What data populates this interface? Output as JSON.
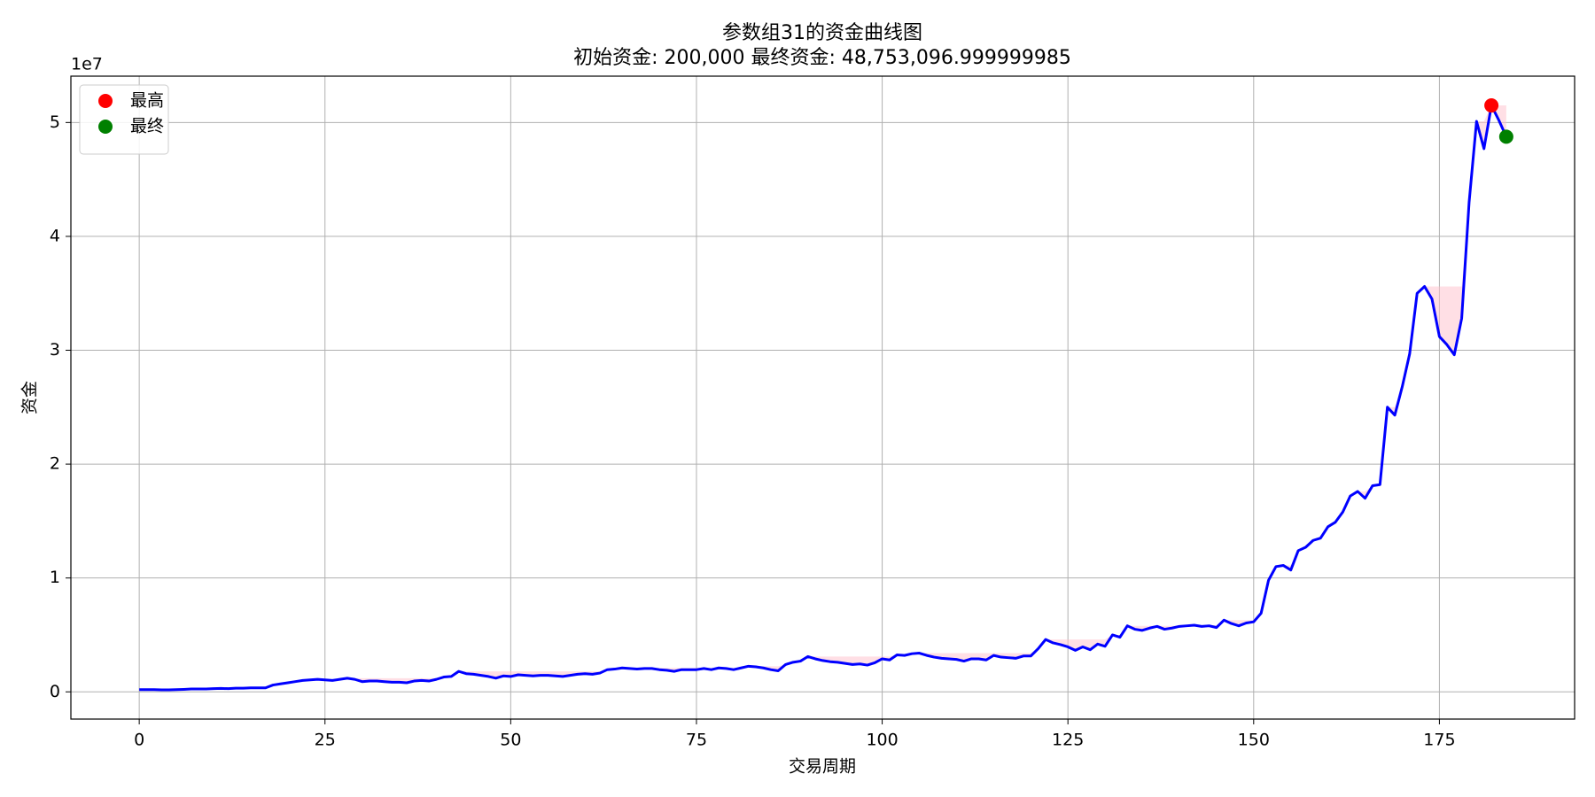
{
  "chart_data": {
    "type": "line",
    "title": "参数组31的资金曲线图",
    "subtitle": "初始资金: 200,000 最终资金: 48,753,096.999999985",
    "x_label": "交易周期",
    "y_label": "资金",
    "y_offset_text": "1e7",
    "x": [
      0,
      1,
      2,
      3,
      4,
      5,
      6,
      7,
      8,
      9,
      10,
      11,
      12,
      13,
      14,
      15,
      16,
      17,
      18,
      19,
      20,
      21,
      22,
      23,
      24,
      25,
      26,
      27,
      28,
      29,
      30,
      31,
      32,
      33,
      34,
      35,
      36,
      37,
      38,
      39,
      40,
      41,
      42,
      43,
      44,
      45,
      46,
      47,
      48,
      49,
      50,
      51,
      52,
      53,
      54,
      55,
      56,
      57,
      58,
      59,
      60,
      61,
      62,
      63,
      64,
      65,
      66,
      67,
      68,
      69,
      70,
      71,
      72,
      73,
      74,
      75,
      76,
      77,
      78,
      79,
      80,
      81,
      82,
      83,
      84,
      85,
      86,
      87,
      88,
      89,
      90,
      91,
      92,
      93,
      94,
      95,
      96,
      97,
      98,
      99,
      100,
      101,
      102,
      103,
      104,
      105,
      106,
      107,
      108,
      109,
      110,
      111,
      112,
      113,
      114,
      115,
      116,
      117,
      118,
      119,
      120,
      121,
      122,
      123,
      124,
      125,
      126,
      127,
      128,
      129,
      130,
      131,
      132,
      133,
      134,
      135,
      136,
      137,
      138,
      139,
      140,
      141,
      142,
      143,
      144,
      145,
      146,
      147,
      148,
      149,
      150,
      151,
      152,
      153,
      154,
      155,
      156,
      157,
      158,
      159,
      160,
      161,
      162,
      163,
      164,
      165,
      166,
      167,
      168,
      169,
      170,
      171,
      172,
      173,
      174,
      175,
      176,
      177,
      178,
      179,
      180,
      181,
      182,
      183,
      184
    ],
    "series": [
      {
        "color": "#0000ff",
        "values": [
          200000,
          200000,
          200000,
          180000,
          180000,
          200000,
          220000,
          250000,
          250000,
          250000,
          280000,
          300000,
          280000,
          320000,
          320000,
          350000,
          350000,
          350000,
          600000,
          700000,
          800000,
          900000,
          1000000,
          1050000,
          1100000,
          1050000,
          1000000,
          1100000,
          1200000,
          1100000,
          900000,
          950000,
          950000,
          900000,
          850000,
          850000,
          800000,
          950000,
          1000000,
          950000,
          1100000,
          1300000,
          1350000,
          1800000,
          1600000,
          1550000,
          1450000,
          1350000,
          1200000,
          1400000,
          1350000,
          1500000,
          1450000,
          1400000,
          1450000,
          1450000,
          1400000,
          1350000,
          1450000,
          1550000,
          1600000,
          1550000,
          1650000,
          1950000,
          2000000,
          2100000,
          2050000,
          2000000,
          2050000,
          2050000,
          1950000,
          1900000,
          1800000,
          1950000,
          1950000,
          1950000,
          2050000,
          1950000,
          2100000,
          2050000,
          1950000,
          2100000,
          2250000,
          2200000,
          2100000,
          1950000,
          1850000,
          2400000,
          2600000,
          2700000,
          3100000,
          2900000,
          2750000,
          2650000,
          2600000,
          2500000,
          2400000,
          2450000,
          2350000,
          2550000,
          2900000,
          2800000,
          3250000,
          3200000,
          3350000,
          3400000,
          3200000,
          3050000,
          2950000,
          2900000,
          2850000,
          2700000,
          2900000,
          2900000,
          2800000,
          3200000,
          3050000,
          3000000,
          2950000,
          3150000,
          3150000,
          3800000,
          4600000,
          4300000,
          4150000,
          3950000,
          3650000,
          3950000,
          3700000,
          4200000,
          4000000,
          5000000,
          4800000,
          5800000,
          5500000,
          5400000,
          5600000,
          5750000,
          5500000,
          5600000,
          5750000,
          5800000,
          5850000,
          5750000,
          5800000,
          5650000,
          6300000,
          6000000,
          5800000,
          6050000,
          6150000,
          6900000,
          9800000,
          11000000,
          11100000,
          10700000,
          12400000,
          12700000,
          13300000,
          13500000,
          14500000,
          14900000,
          15800000,
          17200000,
          17600000,
          17000000,
          18100000,
          18200000,
          25000000,
          24300000,
          26800000,
          29700000,
          35000000,
          35600000,
          34500000,
          31200000,
          30500000,
          29600000,
          32800000,
          43000000,
          50100000,
          47700000,
          51500000,
          50200000,
          48753096.999999985
        ]
      }
    ],
    "fill_color": "#ffc0cb",
    "markers": [
      {
        "name": "最高",
        "color": "#ff0000",
        "x": 182,
        "value": 51500000
      },
      {
        "name": "最终",
        "color": "#008000",
        "x": 184,
        "value": 48753096.999999985
      }
    ],
    "xlim": [
      -9.2,
      193.2
    ],
    "xticks": [
      0,
      25,
      50,
      75,
      100,
      125,
      150,
      175
    ],
    "ylim": [
      -2390000,
      54070000
    ],
    "yticks": [
      0,
      {
        "value": 10000000,
        "label": "1"
      },
      {
        "value": 20000000,
        "label": "2"
      },
      {
        "value": 30000000,
        "label": "3"
      },
      {
        "value": 40000000,
        "label": "4"
      },
      {
        "value": 50000000,
        "label": "5"
      }
    ],
    "grid": true,
    "legend": "upper left"
  }
}
